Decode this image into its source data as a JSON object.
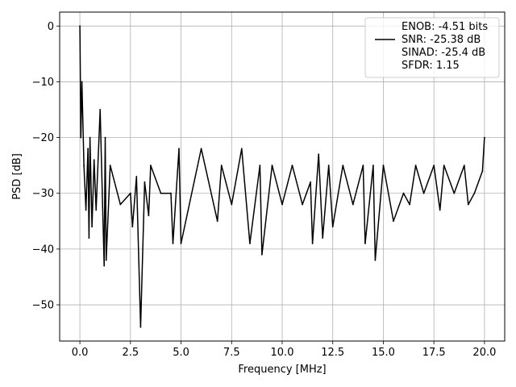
{
  "chart_data": {
    "type": "line",
    "title": "",
    "xlabel": "Frequency [MHz]",
    "ylabel": "PSD [dB]",
    "xlim": [
      -1.0,
      21.0
    ],
    "ylim": [
      -56.5,
      2.5
    ],
    "xticks": [
      0.0,
      2.5,
      5.0,
      7.5,
      10.0,
      12.5,
      15.0,
      17.5,
      20.0
    ],
    "xtick_labels": [
      "0.0",
      "2.5",
      "5.0",
      "7.5",
      "10.0",
      "12.5",
      "15.0",
      "17.5",
      "20.0"
    ],
    "yticks": [
      0,
      -10,
      -20,
      -30,
      -40,
      -50
    ],
    "ytick_labels": [
      "0",
      "−10",
      "−20",
      "−30",
      "−40",
      "−50"
    ],
    "grid": true,
    "legend_position": "top-right",
    "legend": [
      {
        "label": "ENOB: -4.51 bits",
        "has_line": false
      },
      {
        "label": "SNR: -25.38 dB",
        "has_line": true
      },
      {
        "label": "SINAD: -25.4 dB",
        "has_line": false
      },
      {
        "label": "SFDR: 1.15",
        "has_line": false
      }
    ],
    "series": [
      {
        "color": "#000000",
        "x": [
          0.0,
          0.05,
          0.1,
          0.2,
          0.3,
          0.4,
          0.45,
          0.5,
          0.6,
          0.7,
          0.8,
          1.0,
          1.2,
          1.25,
          1.3,
          1.5,
          2.0,
          2.5,
          2.6,
          2.8,
          3.0,
          3.2,
          3.4,
          3.5,
          4.0,
          4.5,
          4.6,
          4.9,
          5.0,
          6.0,
          6.8,
          7.0,
          7.5,
          8.0,
          8.4,
          8.9,
          9.0,
          9.5,
          10.0,
          10.5,
          11.0,
          11.4,
          11.5,
          11.8,
          12.0,
          12.3,
          12.5,
          13.0,
          13.5,
          14.0,
          14.1,
          14.5,
          14.6,
          15.0,
          15.5,
          16.0,
          16.3,
          16.6,
          17.0,
          17.5,
          17.8,
          18.0,
          18.5,
          19.0,
          19.2,
          19.5,
          19.9,
          20.0
        ],
        "y": [
          0.0,
          -20,
          -10,
          -25,
          -33,
          -22,
          -38,
          -20,
          -36,
          -24,
          -33,
          -15,
          -43,
          -20,
          -42,
          -25,
          -32,
          -30,
          -36,
          -27,
          -54,
          -28,
          -34,
          -25,
          -30,
          -30,
          -39,
          -22,
          -39,
          -22,
          -35,
          -25,
          -32,
          -22,
          -39,
          -25,
          -41,
          -25,
          -32,
          -25,
          -32,
          -28,
          -39,
          -23,
          -38,
          -25,
          -36,
          -25,
          -32,
          -25,
          -39,
          -25,
          -42,
          -25,
          -35,
          -30,
          -32,
          -25,
          -30,
          -25,
          -33,
          -25,
          -30,
          -25,
          -32,
          -30,
          -26,
          -20
        ]
      }
    ]
  }
}
